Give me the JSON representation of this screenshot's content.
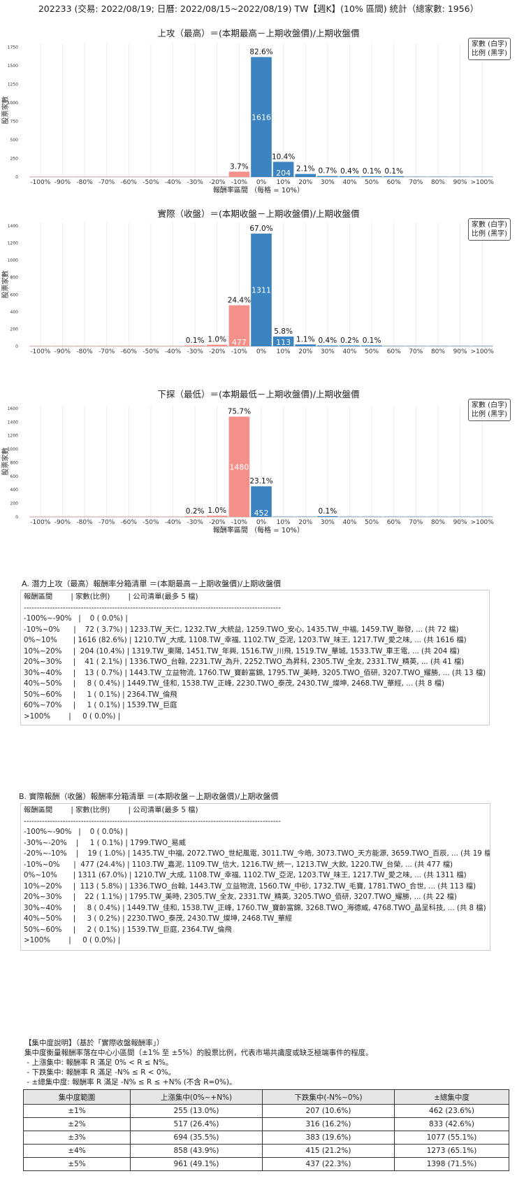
{
  "page_title": "202233 (交易: 2022/08/19; 日曆: 2022/08/15~2022/08/19) TW【週K】(10% 區間) 統計（總家數: 1956）",
  "legend": {
    "line1": "家數 (白字)",
    "line2": "比例 (黑字)"
  },
  "colors": {
    "negative": "#f4908a",
    "positive": "#3b83c1"
  },
  "chart_data": [
    {
      "type": "bar",
      "title": "上攻（最高）＝(本期最高－上期收盤價)/上期收盤價",
      "xlabel": "報酬率區間 （每格 = 10%）",
      "ylabel": "股票家數",
      "categories": [
        "-100%",
        "-90%",
        "-80%",
        "-70%",
        "-60%",
        "-50%",
        "-40%",
        "-30%",
        "-20%",
        "-10%",
        "0%",
        "10%",
        "20%",
        "30%",
        "40%",
        "50%",
        "60%",
        "70%",
        "80%",
        "90%",
        ">100%"
      ],
      "values": [
        0,
        0,
        0,
        0,
        0,
        0,
        0,
        0,
        0,
        72,
        1616,
        204,
        41,
        13,
        8,
        1,
        1,
        0,
        0,
        0,
        0
      ],
      "pct_labels": [
        "",
        "",
        "",
        "",
        "",
        "",
        "",
        "",
        "",
        "3.7%",
        "82.6%",
        "10.4%",
        "2.1%",
        "0.7%",
        "0.4%",
        "0.1%",
        "0.1%",
        "",
        "",
        "",
        ""
      ],
      "yticks": [
        0,
        250,
        500,
        750,
        1000,
        1250,
        1500,
        1750
      ],
      "ylim": [
        0,
        1800
      ]
    },
    {
      "type": "bar",
      "title": "實際（收盤）＝(本期收盤－上期收盤價)/上期收盤價",
      "xlabel": "",
      "ylabel": "股票家數",
      "categories": [
        "-100%",
        "-90%",
        "-80%",
        "-70%",
        "-60%",
        "-50%",
        "-40%",
        "-30%",
        "-20%",
        "-10%",
        "0%",
        "10%",
        "20%",
        "30%",
        "40%",
        "50%",
        "60%",
        "70%",
        "80%",
        "90%",
        ">100%"
      ],
      "values": [
        0,
        0,
        0,
        0,
        0,
        0,
        0,
        1,
        19,
        477,
        1311,
        113,
        22,
        8,
        3,
        2,
        0,
        0,
        0,
        0,
        0
      ],
      "pct_labels": [
        "",
        "",
        "",
        "",
        "",
        "",
        "",
        "0.1%",
        "1.0%",
        "24.4%",
        "67.0%",
        "5.8%",
        "1.1%",
        "0.4%",
        "0.2%",
        "0.1%",
        "",
        "",
        "",
        "",
        ""
      ],
      "yticks": [
        0,
        200,
        400,
        600,
        800,
        1000,
        1200,
        1400
      ],
      "ylim": [
        0,
        1440
      ]
    },
    {
      "type": "bar",
      "title": "下探（最低）＝(本期最低－上期收盤價)/上期收盤價",
      "xlabel": "報酬率區間 （每格 = 10%）",
      "ylabel": "股票家數",
      "categories": [
        "-100%",
        "-90%",
        "-80%",
        "-70%",
        "-60%",
        "-50%",
        "-40%",
        "-30%",
        "-20%",
        "-10%",
        "0%",
        "10%",
        "20%",
        "30%",
        "40%",
        "50%",
        "60%",
        "70%",
        "80%",
        "90%",
        ">100%"
      ],
      "values": [
        0,
        0,
        0,
        0,
        0,
        0,
        0,
        3,
        19,
        1480,
        452,
        0,
        0,
        1,
        0,
        0,
        0,
        0,
        0,
        0,
        0
      ],
      "pct_labels": [
        "",
        "",
        "",
        "",
        "",
        "",
        "",
        "0.2%",
        "1.0%",
        "75.7%",
        "23.1%",
        "",
        "",
        "0.1%",
        "",
        "",
        "",
        "",
        "",
        "",
        ""
      ],
      "yticks": [
        0,
        200,
        400,
        600,
        800,
        1000,
        1200,
        1400,
        1600
      ],
      "ylim": [
        0,
        1640
      ]
    }
  ],
  "section_a": {
    "title": "A. 潛力上攻（最高）報酬率分箱清單 ＝(本期最高－上期收盤價)/上期收盤價",
    "lines": [
      "報酬區間        | 家數(比例)        | 公司清單(最多 5 檔)",
      "---------------------------------------------------------------------------------------------------",
      "-100%~-90%   |    0 ( 0.0%) |",
      "-10%~0%      |    72 ( 3.7%) | 1233.TW_天仁, 1232.TW_大統益, 1259.TWO_安心, 1435.TW_中福, 1459.TW_聯發, ... (共 72 檔)",
      "0%~10%       | 1616 (82.6%) | 1210.TW_大成, 1108.TW_幸福, 1102.TW_亞泥, 1203.TW_味王, 1217.TW_愛之味, ... (共 1616 檔)",
      "10%~20%     |  204 (10.4%) | 1319.TW_東陽, 1451.TW_年興, 1516.TW_川飛, 1519.TW_華城, 1533.TW_車王電, ... (共 204 檔)",
      "20%~30%     |    41 ( 2.1%) | 1336.TWO_台翰, 2231.TW_為升, 2252.TWO_為昇科, 2305.TW_全友, 2331.TW_精英, ... (共 41 檔)",
      "30%~40%     |    13 ( 0.7%) | 1443.TW_立益物流, 1760.TW_寶齡富錦, 1795.TW_美時, 3205.TWO_佰研, 3207.TWO_耀勝, ... (共 13 檔)",
      "40%~50%     |     8 ( 0.4%) | 1449.TW_佳和, 1538.TW_正峰, 2230.TWO_泰茂, 2430.TW_燦坤, 2468.TW_華經, ... (共 8 檔)",
      "50%~60%     |     1 ( 0.1%) | 2364.TW_倫飛",
      "60%~70%     |     1 ( 0.1%) | 1539.TW_巨庭",
      ">100%        |     0 ( 0.0%) |"
    ]
  },
  "section_b": {
    "title": "B. 實際報酬（收盤）報酬率分箱清單 ＝(本期收盤－上期收盤價)/上期收盤價",
    "lines": [
      "報酬區間        | 家數(比例)        | 公司清單(最多 5 檔)",
      "---------------------------------------------------------------------------------------------------",
      "-100%~-90%   |    0 ( 0.0%) |",
      "-30%~-20%    |     1 ( 0.1%) | 1799.TWO_易威",
      "-20%~-10%    |    19 ( 1.0%) | 1435.TW_中福, 2072.TWO_世紀風電, 3011.TW_今皓, 3073.TWO_天方能源, 3659.TWO_百辰, ... (共 19 檔)",
      "-10%~0%      |  477 (24.4%) | 1103.TW_嘉泥, 1109.TW_信大, 1216.TW_統一, 1213.TW_大飲, 1220.TW_台榮, ... (共 477 檔)",
      "0%~10%       | 1311 (67.0%) | 1210.TW_大成, 1108.TW_幸福, 1102.TW_亞泥, 1203.TW_味王, 1217.TW_愛之味, ... (共 1311 檔)",
      "10%~20%     |  113 ( 5.8%) | 1336.TWO_台翰, 1443.TW_立益物流, 1560.TW_中砂, 1732.TW_毛寶, 1781.TWO_合世, ... (共 113 檔)",
      "20%~30%     |    22 ( 1.1%) | 1795.TW_美時, 2305.TW_全友, 2331.TW_精英, 3205.TWO_佰研, 3207.TWO_耀勝, ... (共 22 檔)",
      "30%~40%     |     8 ( 0.4%) | 1449.TW_佳和, 1538.TW_正峰, 1760.TW_寶齡富錦, 3268.TWO_海德威, 4768.TWO_晶呈科技, ... (共 8 檔)",
      "40%~50%     |     3 ( 0.2%) | 2230.TWO_泰茂, 2430.TW_燦坤, 2468.TW_華經",
      "50%~60%     |     2 ( 0.1%) | 1539.TW_巨庭, 2364.TW_倫飛",
      ">100%        |     0 ( 0.0%) |"
    ]
  },
  "concentration": {
    "heading": "【集中度說明】（基於「實際收盤報酬率」）",
    "desc": "集中度衡量報酬率落在中心小區間（±1% 至 ±5%）的股票比例，代表市場共識度或缺乏極端事件的程度。",
    "bullets": [
      " - 上漲集中: 報酬率 R 滿足 0% < R ≤ N%。",
      " - 下跌集中: 報酬率 R 滿足 -N% ≤ R < 0%。",
      " - ±總集中度: 報酬率 R 滿足 -N% ≤ R ≤ +N% (不含 R=0%)。"
    ],
    "headers": [
      "集中度範圍",
      "上漲集中(0%~+N%)",
      "下跌集中(-N%~0%)",
      "±總集中度"
    ],
    "rows": [
      [
        "±1%",
        "255 (13.0%)",
        "207 (10.6%)",
        "462 (23.6%)"
      ],
      [
        "±2%",
        "517 (26.4%)",
        "316 (16.2%)",
        "833 (42.6%)"
      ],
      [
        "±3%",
        "694 (35.5%)",
        "383 (19.6%)",
        "1077 (55.1%)"
      ],
      [
        "±4%",
        "858 (43.9%)",
        "415 (21.2%)",
        "1273 (65.1%)"
      ],
      [
        "±5%",
        "961 (49.1%)",
        "437 (22.3%)",
        "1398 (71.5%)"
      ]
    ]
  }
}
